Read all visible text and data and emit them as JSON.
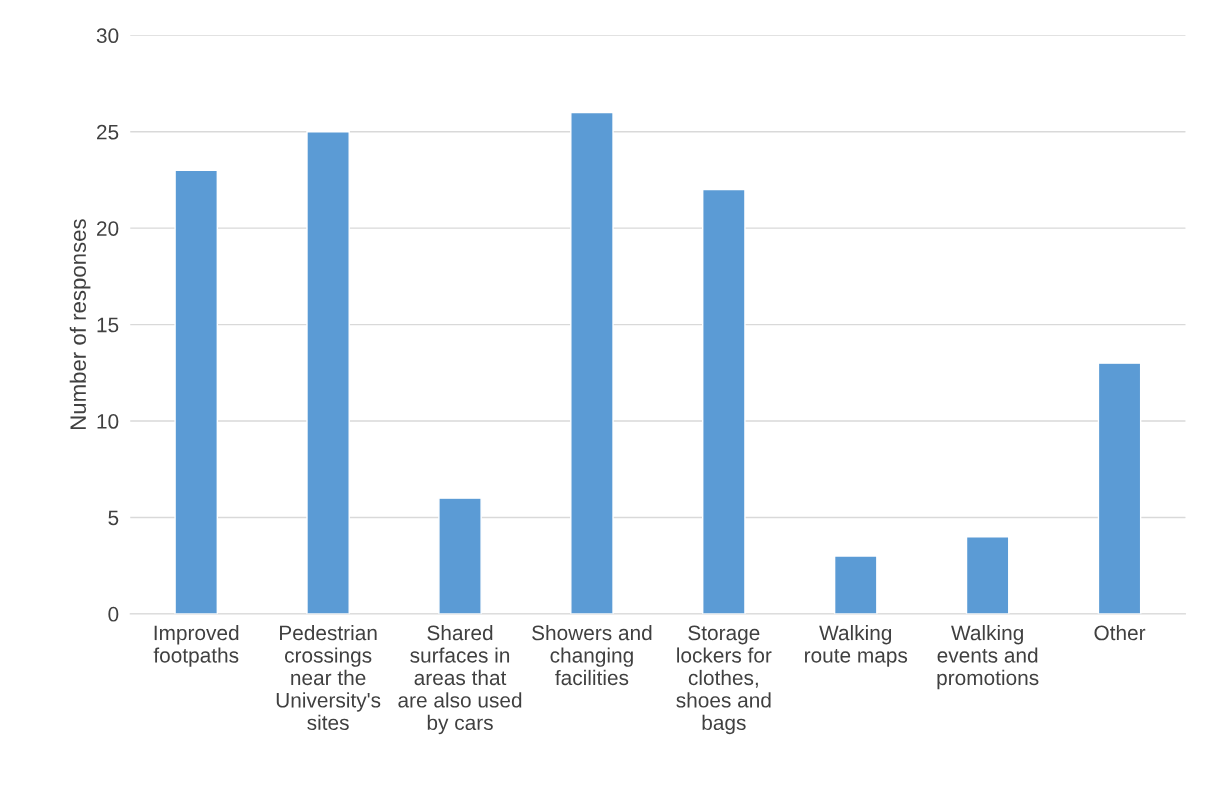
{
  "chart_data": {
    "type": "bar",
    "ylabel": "Number of responses",
    "categories": [
      "Improved\nfootpaths",
      "Pedestrian\ncrossings\nnear the\nUniversity's\nsites",
      "Shared\nsurfaces in\nareas that\nare also used\nby cars",
      "Showers and\nchanging\nfacilities",
      "Storage\nlockers for\nclothes,\nshoes and\nbags",
      "Walking\nroute maps",
      "Walking\nevents and\npromotions",
      "Other"
    ],
    "values": [
      23,
      25,
      6,
      26,
      22,
      3,
      4,
      13
    ],
    "color": "#5b9bd5",
    "ylim": [
      0,
      30
    ],
    "yticks": [
      0,
      5,
      10,
      15,
      20,
      25,
      30
    ],
    "grid": "y",
    "legend": false
  }
}
